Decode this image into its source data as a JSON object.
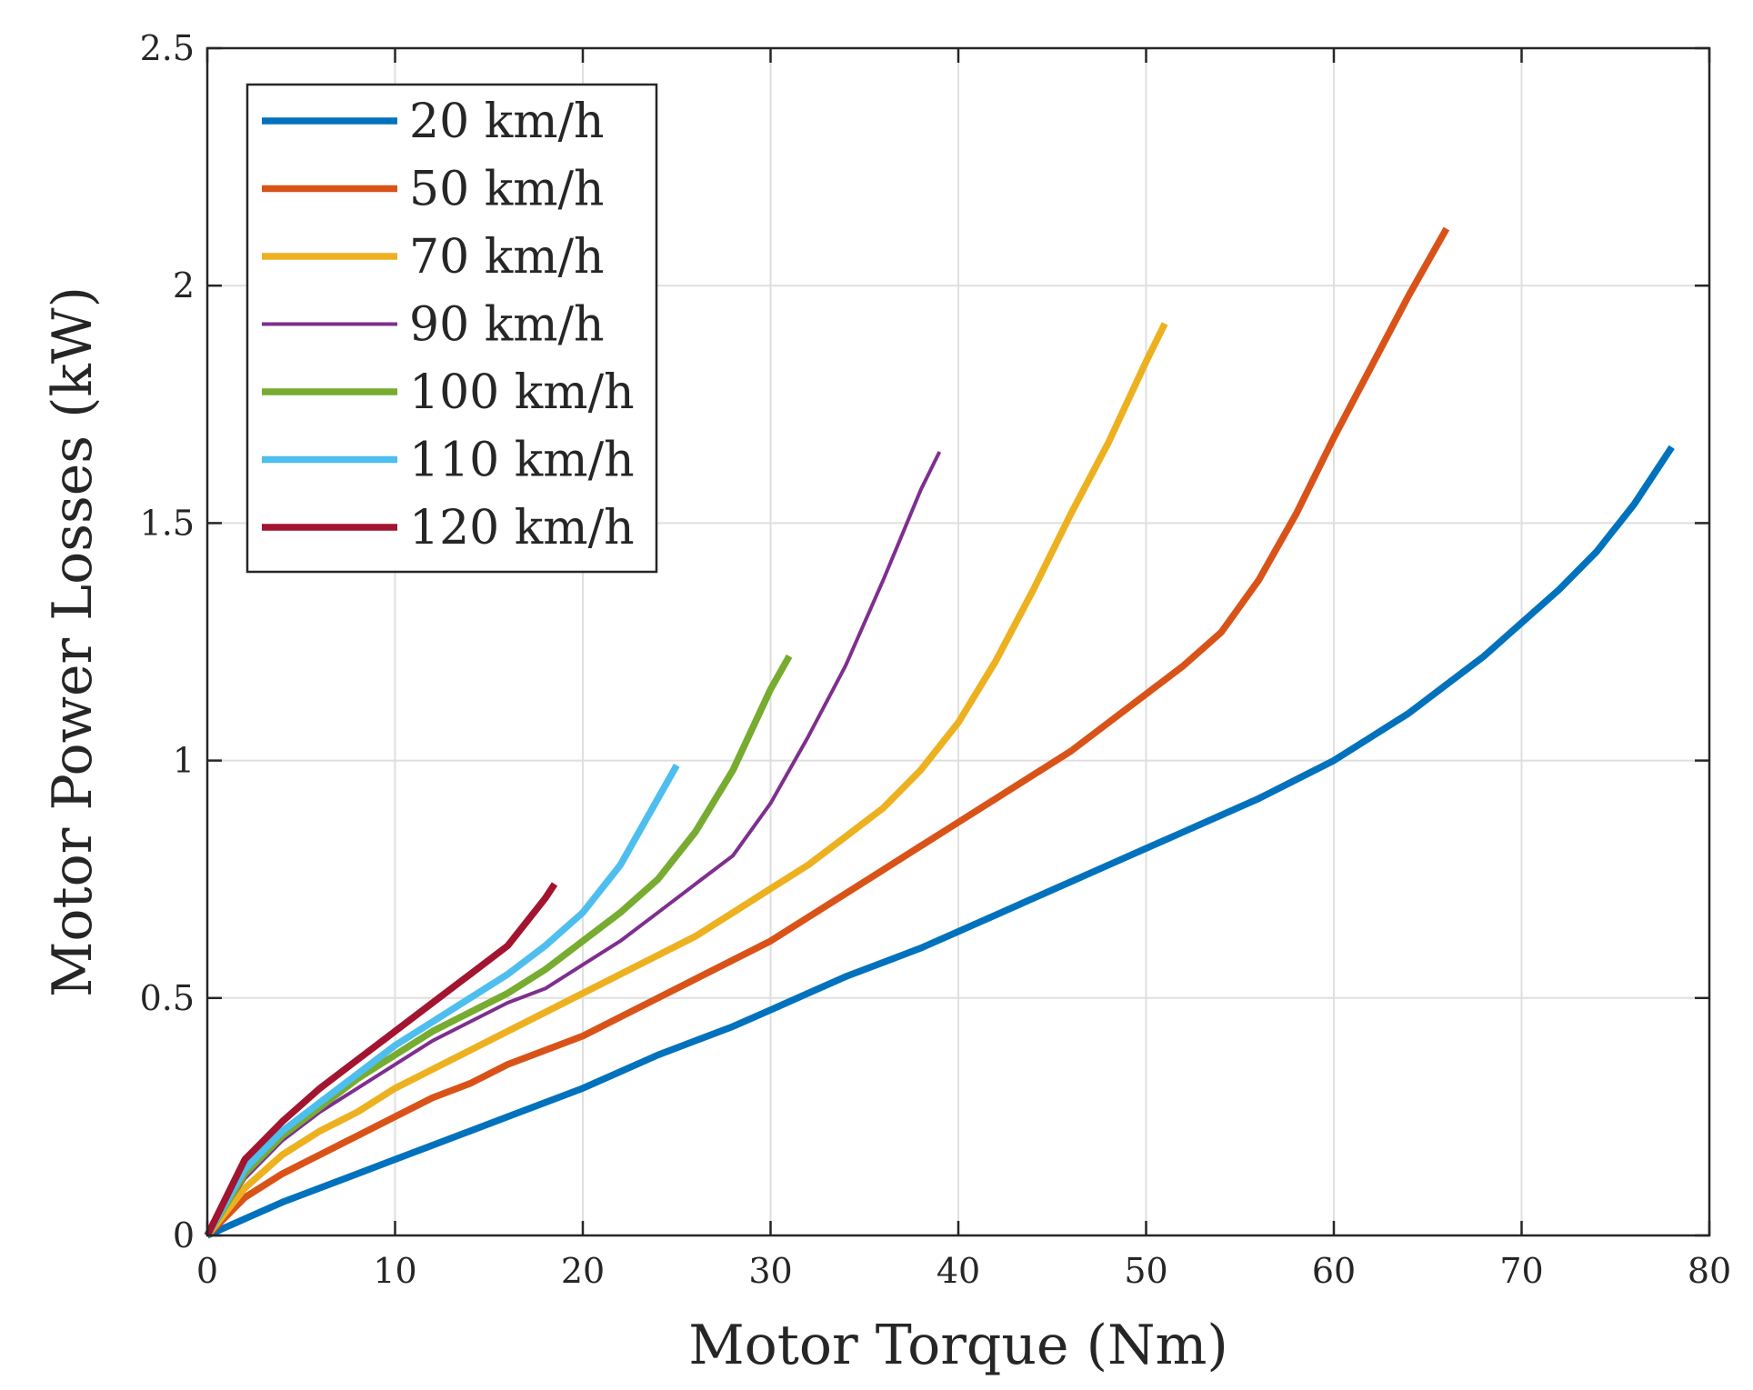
{
  "chart_data": {
    "type": "line",
    "xlabel": "Motor Torque (Nm)",
    "ylabel": "Motor Power Losses (kW)",
    "xlim": [
      0,
      80
    ],
    "ylim": [
      0,
      2.5
    ],
    "xticks": [
      0,
      10,
      20,
      30,
      40,
      50,
      60,
      70,
      80
    ],
    "yticks": [
      0,
      0.5,
      1,
      1.5,
      2,
      2.5
    ],
    "xtick_labels": [
      "0",
      "10",
      "20",
      "30",
      "40",
      "50",
      "60",
      "70",
      "80"
    ],
    "ytick_labels": [
      "0",
      "0.5",
      "1",
      "1.5",
      "2",
      "2.5"
    ],
    "grid": true,
    "legend_position": "top-left",
    "series": [
      {
        "name": "20 km/h",
        "color": "#0072BD",
        "width": "thick",
        "x": [
          0,
          2,
          4,
          6,
          8,
          10,
          12,
          14,
          16,
          18,
          20,
          22,
          24,
          26,
          28,
          30,
          32,
          34,
          36,
          38,
          40,
          42,
          44,
          46,
          48,
          50,
          52,
          54,
          56,
          58,
          60,
          62,
          64,
          66,
          68,
          70,
          72,
          74,
          76,
          78
        ],
        "y": [
          0,
          0.035,
          0.07,
          0.1,
          0.13,
          0.16,
          0.19,
          0.22,
          0.25,
          0.28,
          0.31,
          0.345,
          0.38,
          0.41,
          0.44,
          0.475,
          0.51,
          0.545,
          0.575,
          0.605,
          0.64,
          0.675,
          0.71,
          0.745,
          0.78,
          0.815,
          0.85,
          0.885,
          0.92,
          0.96,
          1.0,
          1.05,
          1.1,
          1.16,
          1.22,
          1.29,
          1.36,
          1.44,
          1.54,
          1.66
        ]
      },
      {
        "name": "50 km/h",
        "color": "#D95319",
        "width": "thick",
        "x": [
          0,
          2,
          4,
          6,
          8,
          10,
          12,
          14,
          16,
          18,
          20,
          22,
          24,
          26,
          28,
          30,
          32,
          34,
          36,
          38,
          40,
          42,
          44,
          46,
          48,
          50,
          52,
          54,
          56,
          58,
          60,
          62,
          64,
          66
        ],
        "y": [
          0,
          0.08,
          0.13,
          0.17,
          0.21,
          0.25,
          0.29,
          0.32,
          0.36,
          0.39,
          0.42,
          0.46,
          0.5,
          0.54,
          0.58,
          0.62,
          0.67,
          0.72,
          0.77,
          0.82,
          0.87,
          0.92,
          0.97,
          1.02,
          1.08,
          1.14,
          1.2,
          1.27,
          1.38,
          1.52,
          1.68,
          1.83,
          1.98,
          2.12
        ]
      },
      {
        "name": "70 km/h",
        "color": "#EDB120",
        "width": "thick",
        "x": [
          0,
          2,
          4,
          6,
          8,
          10,
          12,
          14,
          16,
          18,
          20,
          22,
          24,
          26,
          28,
          30,
          32,
          34,
          36,
          38,
          40,
          42,
          44,
          46,
          48,
          50,
          51
        ],
        "y": [
          0,
          0.1,
          0.17,
          0.22,
          0.26,
          0.31,
          0.35,
          0.39,
          0.43,
          0.47,
          0.51,
          0.55,
          0.59,
          0.63,
          0.68,
          0.73,
          0.78,
          0.84,
          0.9,
          0.98,
          1.08,
          1.21,
          1.36,
          1.52,
          1.67,
          1.84,
          1.92
        ]
      },
      {
        "name": "90 km/h",
        "color": "#7E2F8E",
        "width": "thin",
        "x": [
          0,
          2,
          4,
          6,
          8,
          10,
          12,
          14,
          16,
          18,
          20,
          22,
          24,
          26,
          28,
          30,
          32,
          34,
          36,
          38,
          39
        ],
        "y": [
          0,
          0.12,
          0.2,
          0.26,
          0.31,
          0.36,
          0.41,
          0.45,
          0.49,
          0.52,
          0.57,
          0.62,
          0.68,
          0.74,
          0.8,
          0.91,
          1.05,
          1.2,
          1.38,
          1.57,
          1.65
        ]
      },
      {
        "name": "100 km/h",
        "color": "#77AC30",
        "width": "thick",
        "x": [
          0,
          2,
          4,
          6,
          8,
          10,
          12,
          14,
          16,
          18,
          20,
          22,
          24,
          26,
          28,
          30,
          31
        ],
        "y": [
          0,
          0.13,
          0.21,
          0.27,
          0.33,
          0.38,
          0.43,
          0.47,
          0.51,
          0.56,
          0.62,
          0.68,
          0.75,
          0.85,
          0.98,
          1.15,
          1.22
        ]
      },
      {
        "name": "110 km/h",
        "color": "#4DBEEE",
        "width": "thick",
        "x": [
          0,
          2,
          4,
          6,
          8,
          10,
          12,
          14,
          16,
          18,
          20,
          22,
          24,
          25
        ],
        "y": [
          0,
          0.14,
          0.22,
          0.28,
          0.34,
          0.4,
          0.45,
          0.5,
          0.55,
          0.61,
          0.68,
          0.78,
          0.92,
          0.99
        ]
      },
      {
        "name": "120 km/h",
        "color": "#A2142F",
        "width": "thick",
        "x": [
          0,
          2,
          4,
          6,
          8,
          10,
          12,
          14,
          16,
          18,
          18.5
        ],
        "y": [
          0,
          0.16,
          0.24,
          0.31,
          0.37,
          0.43,
          0.49,
          0.55,
          0.61,
          0.71,
          0.74
        ]
      }
    ]
  }
}
